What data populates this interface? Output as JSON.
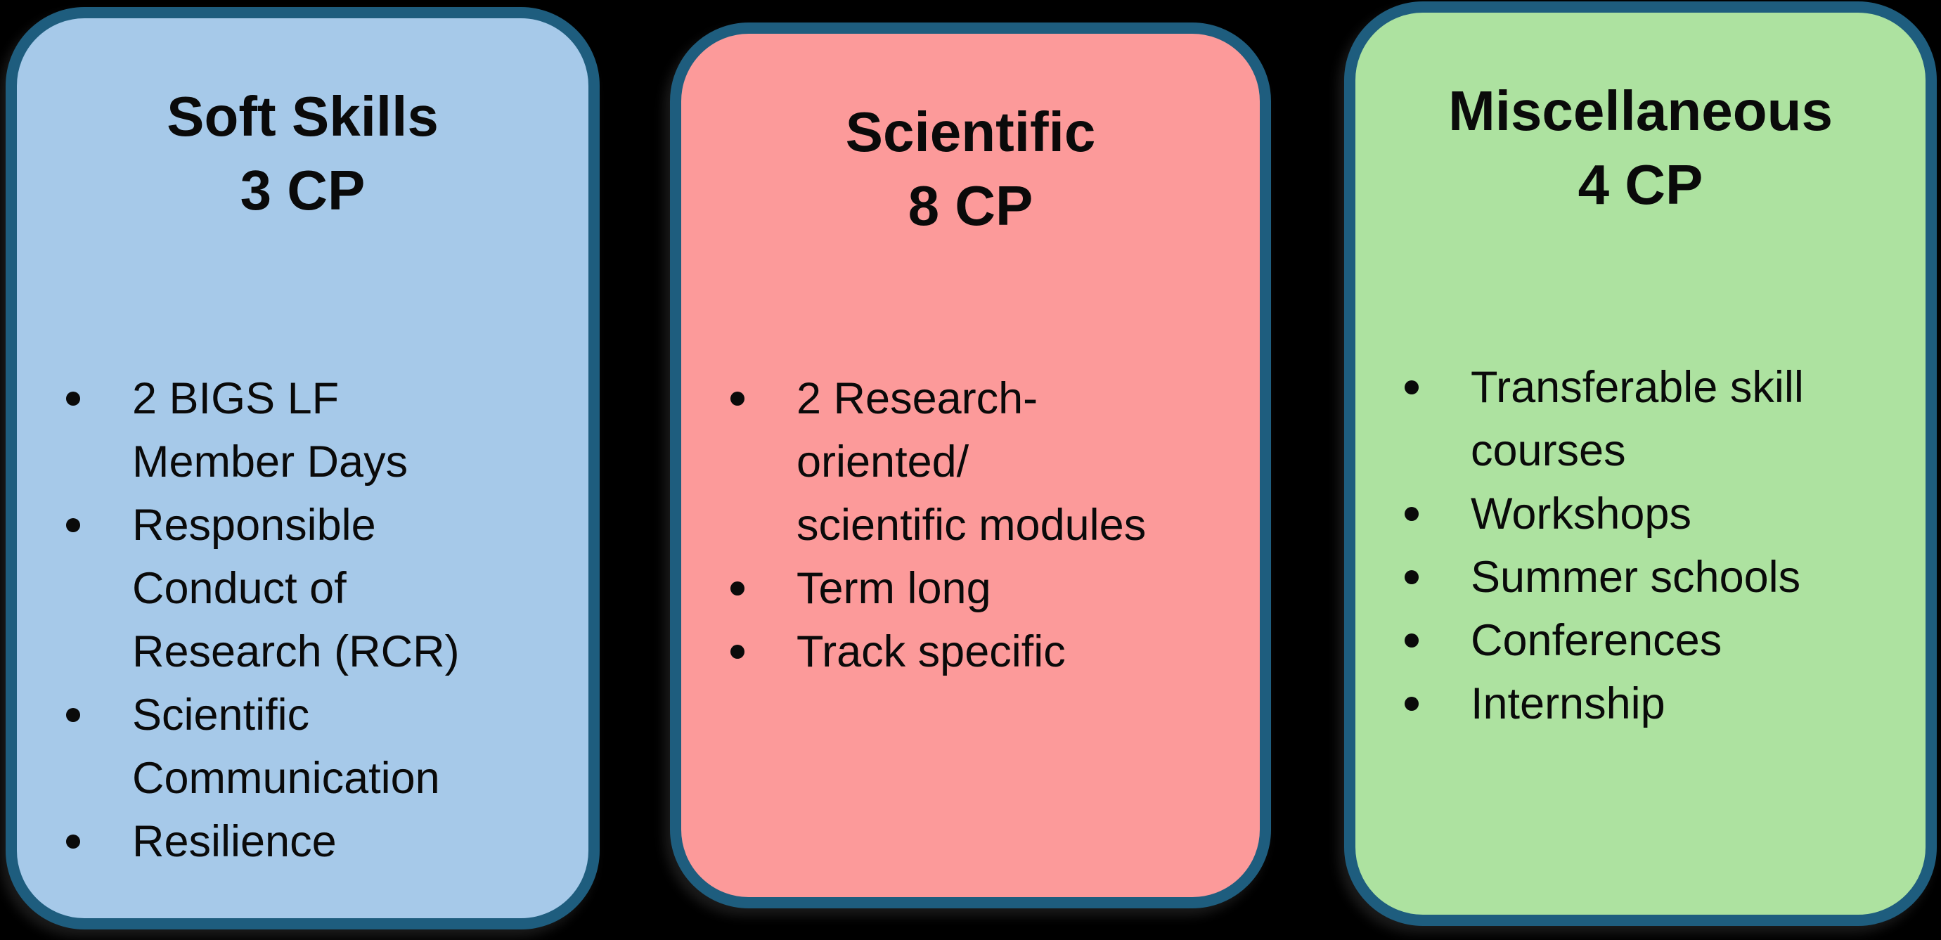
{
  "background_color": "#000000",
  "border_color": "#1E5D7E",
  "text_color": "#0A0A0A",
  "cards": [
    {
      "id": "soft-skills",
      "title": "Soft Skills\n3 CP",
      "fill": "#A6C9E9",
      "items": [
        "2 BIGS LF\nMember Days",
        "Responsible\nConduct of\nResearch (RCR)",
        "Scientific\nCommunication",
        "Resilience"
      ]
    },
    {
      "id": "scientific",
      "title": "Scientific\n8 CP",
      "fill": "#FC9A9A",
      "items": [
        "2 Research-\noriented/\nscientific modules",
        "Term long",
        "Track specific"
      ]
    },
    {
      "id": "miscellaneous",
      "title": "Miscellaneous\n4 CP",
      "fill": "#ADE2A0",
      "items": [
        "Transferable skill\ncourses",
        "Workshops",
        "Summer schools",
        "Conferences",
        "Internship"
      ]
    }
  ]
}
